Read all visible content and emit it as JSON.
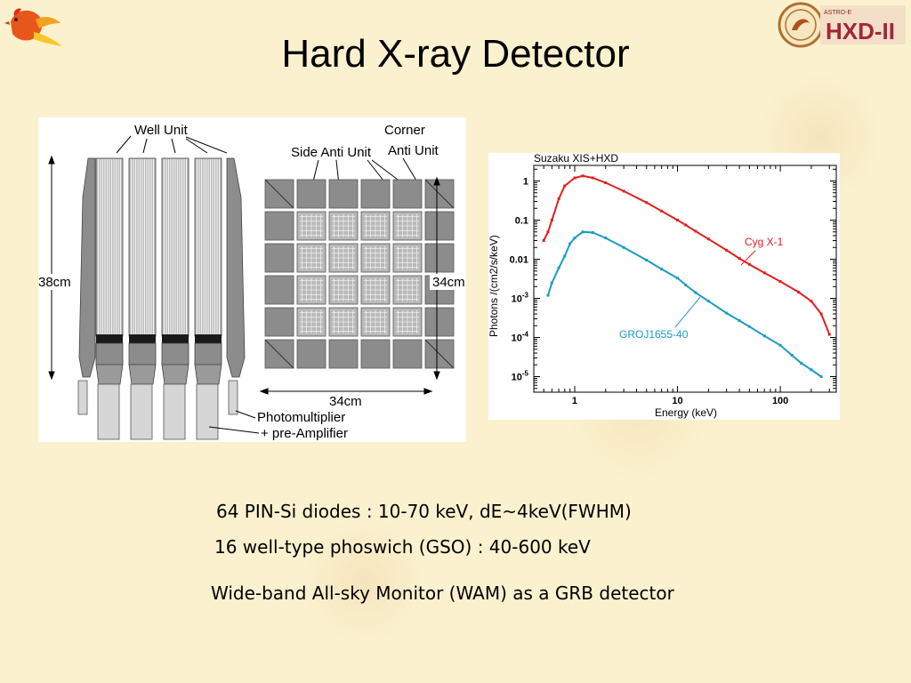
{
  "slide": {
    "title": "Hard X-ray Detector",
    "bullets": [
      "64 PIN-Si diodes : 10-70 keV, dE~4keV(FWHM)",
      "16 well-type phoswich (GSO) : 40-600 keV",
      "Wide-band All-sky Monitor (WAM) as a GRB detector"
    ]
  },
  "logos": {
    "right_text": "HXD-II",
    "right_small": "ASTRO-E"
  },
  "diagram": {
    "well_unit": "Well Unit",
    "side_anti_unit": "Side Anti Unit",
    "corner_line1": "Corner",
    "corner_line2": "Anti Unit",
    "height_label": "38cm",
    "side_label": "34cm",
    "bottom_label": "34cm",
    "pmt_line1": "Photomultiplier",
    "pmt_line2": "+ pre-Amplifier"
  },
  "chart_data": {
    "type": "line",
    "title": "Suzaku XIS+HXD",
    "xlabel": "Energy (keV)",
    "ylabel": "Photons /(cm2/s/keV)",
    "xscale": "log",
    "yscale": "log",
    "xlim": [
      0.4,
      350
    ],
    "ylim": [
      4e-06,
      2.5
    ],
    "xticks": [
      1,
      10,
      100
    ],
    "xtick_labels": [
      "1",
      "10",
      "100"
    ],
    "yticks": [
      1e-05,
      0.0001,
      0.001,
      0.01,
      0.1,
      1
    ],
    "ytick_labels": [
      "10^-5",
      "10^-4",
      "10^-3",
      "0.01",
      "0.1",
      "1"
    ],
    "series": [
      {
        "name": "Cyg X-1",
        "color": "#e0201c",
        "x": [
          0.5,
          0.55,
          0.6,
          0.7,
          0.8,
          1.0,
          1.2,
          1.5,
          2,
          3,
          5,
          7,
          10,
          12,
          15,
          20,
          30,
          40,
          50,
          70,
          100,
          150,
          200,
          250,
          300
        ],
        "y": [
          0.03,
          0.05,
          0.1,
          0.35,
          0.75,
          1.2,
          1.35,
          1.2,
          0.9,
          0.55,
          0.28,
          0.17,
          0.1,
          0.075,
          0.052,
          0.033,
          0.017,
          0.0105,
          0.0074,
          0.0045,
          0.0027,
          0.00145,
          0.00085,
          0.0004,
          0.00012
        ]
      },
      {
        "name": "GROJ1655-40",
        "color": "#1a9bc6",
        "x": [
          0.55,
          0.6,
          0.7,
          0.8,
          0.9,
          1.0,
          1.2,
          1.5,
          2,
          3,
          5,
          7,
          10,
          12,
          15,
          20,
          30,
          40,
          50,
          70,
          100,
          130,
          160,
          200,
          250
        ],
        "y": [
          0.0012,
          0.0025,
          0.006,
          0.012,
          0.025,
          0.035,
          0.05,
          0.048,
          0.035,
          0.02,
          0.0095,
          0.0056,
          0.0033,
          0.0022,
          0.0014,
          0.00085,
          0.00042,
          0.00027,
          0.00019,
          0.00011,
          6.3e-05,
          3.5e-05,
          2.2e-05,
          1.5e-05,
          1e-05
        ]
      }
    ]
  }
}
